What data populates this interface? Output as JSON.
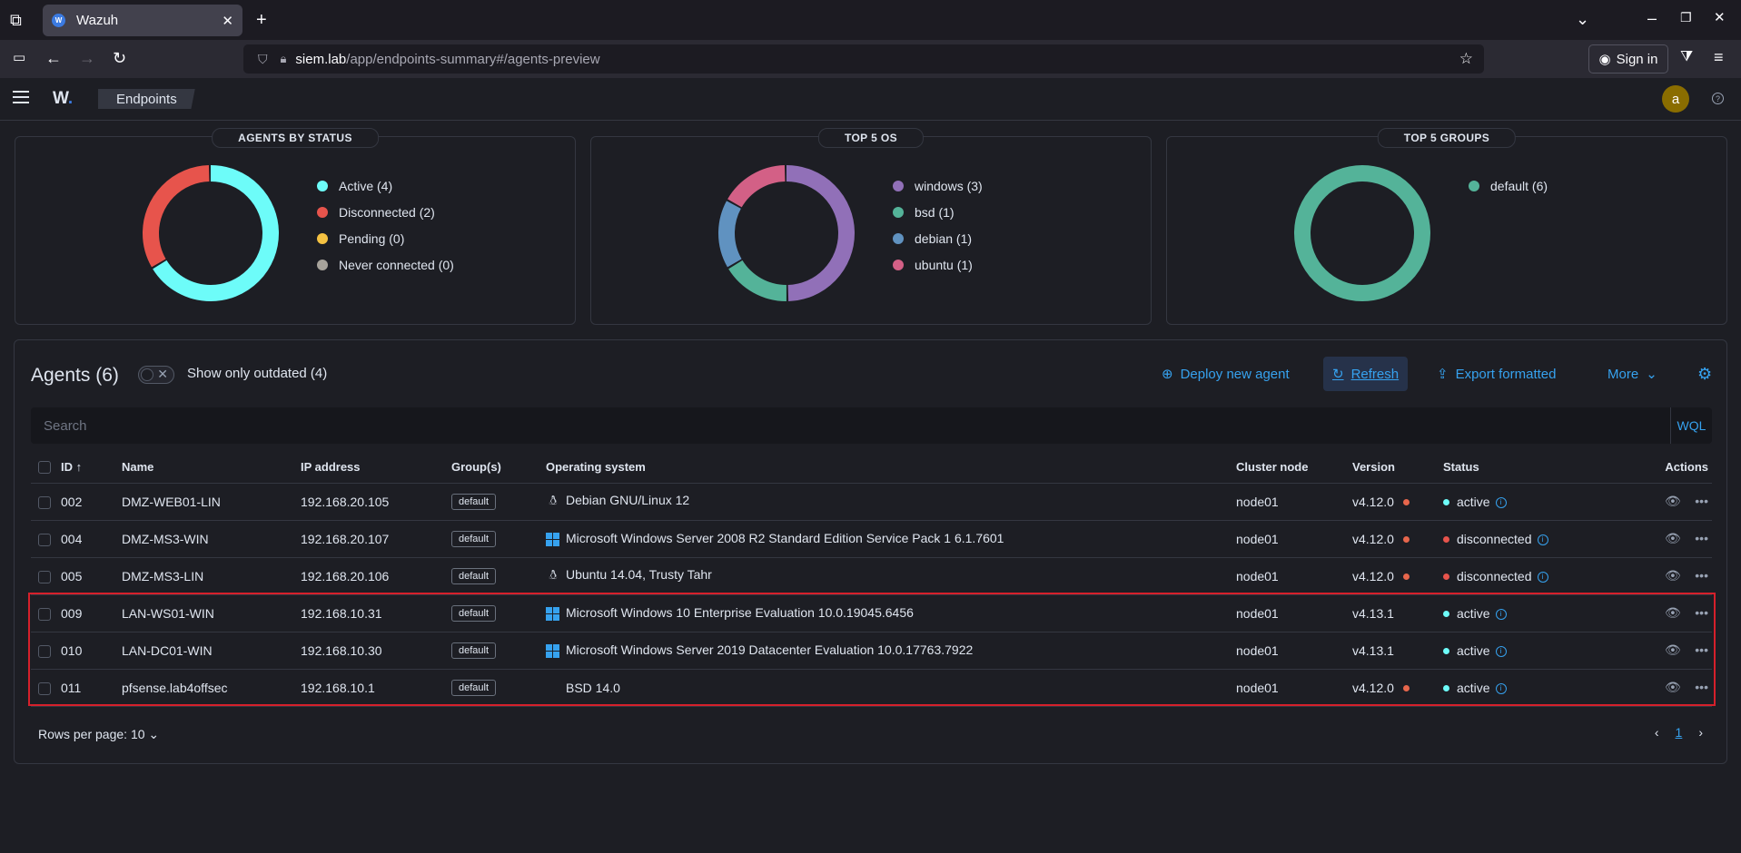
{
  "browser": {
    "tab_title": "Wazuh",
    "url_host": "siem.lab",
    "url_path": "/app/endpoints-summary#/agents-preview",
    "signin_label": "Sign in"
  },
  "app": {
    "logo": "W",
    "breadcrumb": "Endpoints",
    "avatar_letter": "a"
  },
  "panels": [
    {
      "title": "AGENTS BY STATUS",
      "chart_data": {
        "type": "pie",
        "categories": [
          "Active",
          "Disconnected",
          "Pending",
          "Never connected"
        ],
        "values": [
          4,
          2,
          0,
          0
        ],
        "colors": [
          "#6dfcf9",
          "#e7544c",
          "#f5c242",
          "#a7a39b"
        ]
      },
      "legend": [
        "Active (4)",
        "Disconnected (2)",
        "Pending (0)",
        "Never connected (0)"
      ]
    },
    {
      "title": "TOP 5 OS",
      "chart_data": {
        "type": "pie",
        "categories": [
          "windows",
          "bsd",
          "debian",
          "ubuntu"
        ],
        "values": [
          3,
          1,
          1,
          1
        ],
        "colors": [
          "#9170b8",
          "#54b399",
          "#6092c0",
          "#d36086"
        ]
      },
      "legend": [
        "windows (3)",
        "bsd (1)",
        "debian (1)",
        "ubuntu (1)"
      ]
    },
    {
      "title": "TOP 5 GROUPS",
      "chart_data": {
        "type": "pie",
        "categories": [
          "default"
        ],
        "values": [
          6
        ],
        "colors": [
          "#54b399"
        ]
      },
      "legend": [
        "default (6)"
      ]
    }
  ],
  "agents": {
    "title": "Agents (6)",
    "outdated_label": "Show only outdated (4)",
    "deploy_label": "Deploy new agent",
    "refresh_label": "Refresh",
    "export_label": "Export formatted",
    "more_label": "More",
    "search_placeholder": "Search",
    "wql_label": "WQL",
    "columns": [
      "ID",
      "Name",
      "IP address",
      "Group(s)",
      "Operating system",
      "Cluster node",
      "Version",
      "Status",
      "Actions"
    ],
    "rows": [
      {
        "id": "002",
        "name": "DMZ-WEB01-LIN",
        "ip": "192.168.20.105",
        "group": "default",
        "os_icon": "linux",
        "os": "Debian GNU/Linux 12",
        "node": "node01",
        "version": "v4.12.0",
        "outdated": true,
        "status": "active"
      },
      {
        "id": "004",
        "name": "DMZ-MS3-WIN",
        "ip": "192.168.20.107",
        "group": "default",
        "os_icon": "windows",
        "os": "Microsoft Windows Server 2008 R2 Standard Edition Service Pack 1 6.1.7601",
        "node": "node01",
        "version": "v4.12.0",
        "outdated": true,
        "status": "disconnected"
      },
      {
        "id": "005",
        "name": "DMZ-MS3-LIN",
        "ip": "192.168.20.106",
        "group": "default",
        "os_icon": "linux",
        "os": "Ubuntu 14.04, Trusty Tahr",
        "node": "node01",
        "version": "v4.12.0",
        "outdated": true,
        "status": "disconnected"
      },
      {
        "id": "009",
        "name": "LAN-WS01-WIN",
        "ip": "192.168.10.31",
        "group": "default",
        "os_icon": "windows",
        "os": "Microsoft Windows 10 Enterprise Evaluation 10.0.19045.6456",
        "node": "node01",
        "version": "v4.13.1",
        "outdated": false,
        "status": "active"
      },
      {
        "id": "010",
        "name": "LAN-DC01-WIN",
        "ip": "192.168.10.30",
        "group": "default",
        "os_icon": "windows",
        "os": "Microsoft Windows Server 2019 Datacenter Evaluation 10.0.17763.7922",
        "node": "node01",
        "version": "v4.13.1",
        "outdated": false,
        "status": "active"
      },
      {
        "id": "011",
        "name": "pfsense.lab4offsec",
        "ip": "192.168.10.1",
        "group": "default",
        "os_icon": "none",
        "os": "BSD 14.0",
        "node": "node01",
        "version": "v4.12.0",
        "outdated": true,
        "status": "active"
      }
    ],
    "status_colors": {
      "active": "#6dfcf9",
      "disconnected": "#e7544c"
    },
    "rows_per_page_label": "Rows per page: 10",
    "current_page": "1"
  }
}
